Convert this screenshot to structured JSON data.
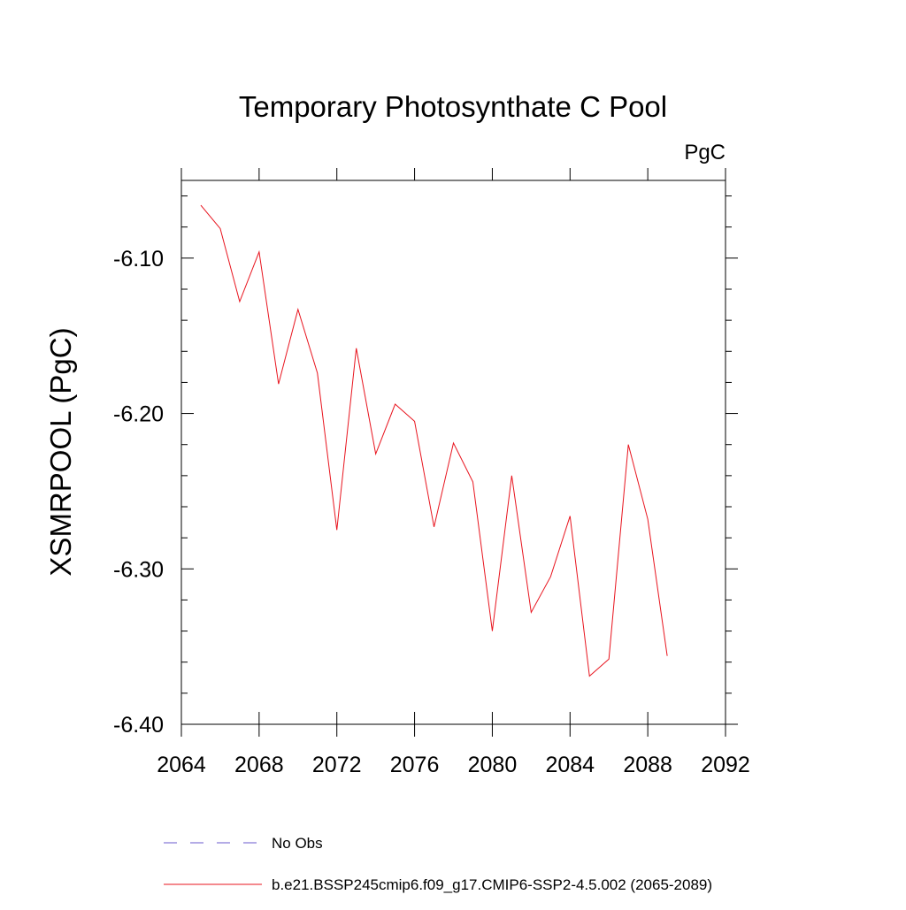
{
  "chart_data": {
    "type": "line",
    "title": "Temporary Photosynthate C Pool",
    "units": "PgC",
    "xlabel": "",
    "ylabel": "XSMRPOOL  (PgC)",
    "xlim": [
      2064,
      2092
    ],
    "ylim": [
      -6.4,
      -6.05
    ],
    "x_major_ticks": [
      2064,
      2068,
      2072,
      2076,
      2080,
      2084,
      2088,
      2092
    ],
    "x_tick_labels": [
      "2064",
      "2068",
      "2072",
      "2076",
      "2080",
      "2084",
      "2088",
      "2092"
    ],
    "x_minor_step": 1,
    "y_major_ticks": [
      -6.1,
      -6.2,
      -6.3,
      -6.4
    ],
    "y_tick_labels": [
      "-6.10",
      "-6.20",
      "-6.30",
      "-6.40"
    ],
    "y_minor_step": 0.02,
    "grid": false,
    "series": [
      {
        "name": "b.e21.BSSP245cmip6.f09_g17.CMIP6-SSP2-4.5.002 (2065-2089)",
        "color": "#e8141e",
        "x": [
          2065,
          2066,
          2067,
          2068,
          2069,
          2070,
          2071,
          2072,
          2073,
          2074,
          2075,
          2076,
          2077,
          2078,
          2079,
          2080,
          2081,
          2082,
          2083,
          2084,
          2085,
          2086,
          2087,
          2088,
          2089
        ],
        "values": [
          -6.066,
          -6.081,
          -6.128,
          -6.096,
          -6.181,
          -6.133,
          -6.174,
          -6.275,
          -6.158,
          -6.226,
          -6.194,
          -6.205,
          -6.273,
          -6.219,
          -6.244,
          -6.34,
          -6.24,
          -6.328,
          -6.305,
          -6.266,
          -6.369,
          -6.358,
          -6.22,
          -6.268,
          -6.356
        ]
      }
    ],
    "legend": {
      "placement": "bottom-left",
      "entries": [
        {
          "label": "No Obs",
          "color": "#6a5acd",
          "style": "dashed"
        },
        {
          "label": "b.e21.BSSP245cmip6.f09_g17.CMIP6-SSP2-4.5.002 (2065-2089)",
          "color": "#e8141e",
          "style": "solid"
        }
      ]
    }
  }
}
